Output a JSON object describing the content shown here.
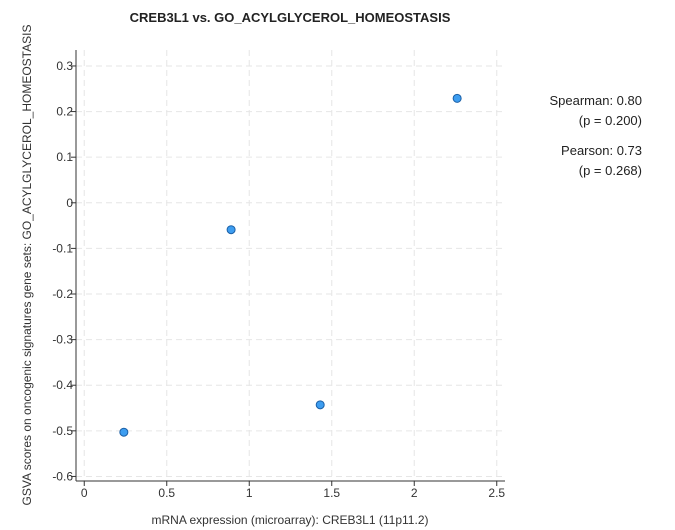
{
  "chart_data": {
    "type": "scatter",
    "title": "CREB3L1 vs. GO_ACYLGLYCEROL_HOMEOSTASIS",
    "xlabel": "mRNA expression (microarray): CREB3L1 (11p11.2)",
    "ylabel": "GSVA scores on oncogenic signatures gene sets: GO_ACYLGLYCEROL_HOMEOSTASIS",
    "xlim": [
      -0.05,
      2.55
    ],
    "ylim": [
      -0.61,
      0.335
    ],
    "x_ticks": [
      0,
      0.5,
      1,
      1.5,
      2,
      2.5
    ],
    "x_tick_labels": [
      "0",
      "0.5",
      "1",
      "1.5",
      "2",
      "2.5"
    ],
    "y_ticks": [
      0.3,
      0.2,
      0.1,
      0,
      -0.1,
      -0.2,
      -0.3,
      -0.4,
      -0.5,
      -0.6
    ],
    "y_tick_labels": [
      "0.3",
      "0.2",
      "0.1",
      "0",
      "-0.1",
      "-0.2",
      "-0.3",
      "-0.4",
      "-0.5",
      "-0.6"
    ],
    "grid": true,
    "point_color": "#3d9df0",
    "points": [
      {
        "x": 0.24,
        "y": -0.503
      },
      {
        "x": 0.89,
        "y": -0.059
      },
      {
        "x": 1.43,
        "y": -0.443
      },
      {
        "x": 2.26,
        "y": 0.229
      }
    ]
  },
  "stats": {
    "spearman": "Spearman: 0.80",
    "spearman_p": "(p = 0.200)",
    "pearson": "Pearson: 0.73",
    "pearson_p": "(p = 0.268)"
  }
}
